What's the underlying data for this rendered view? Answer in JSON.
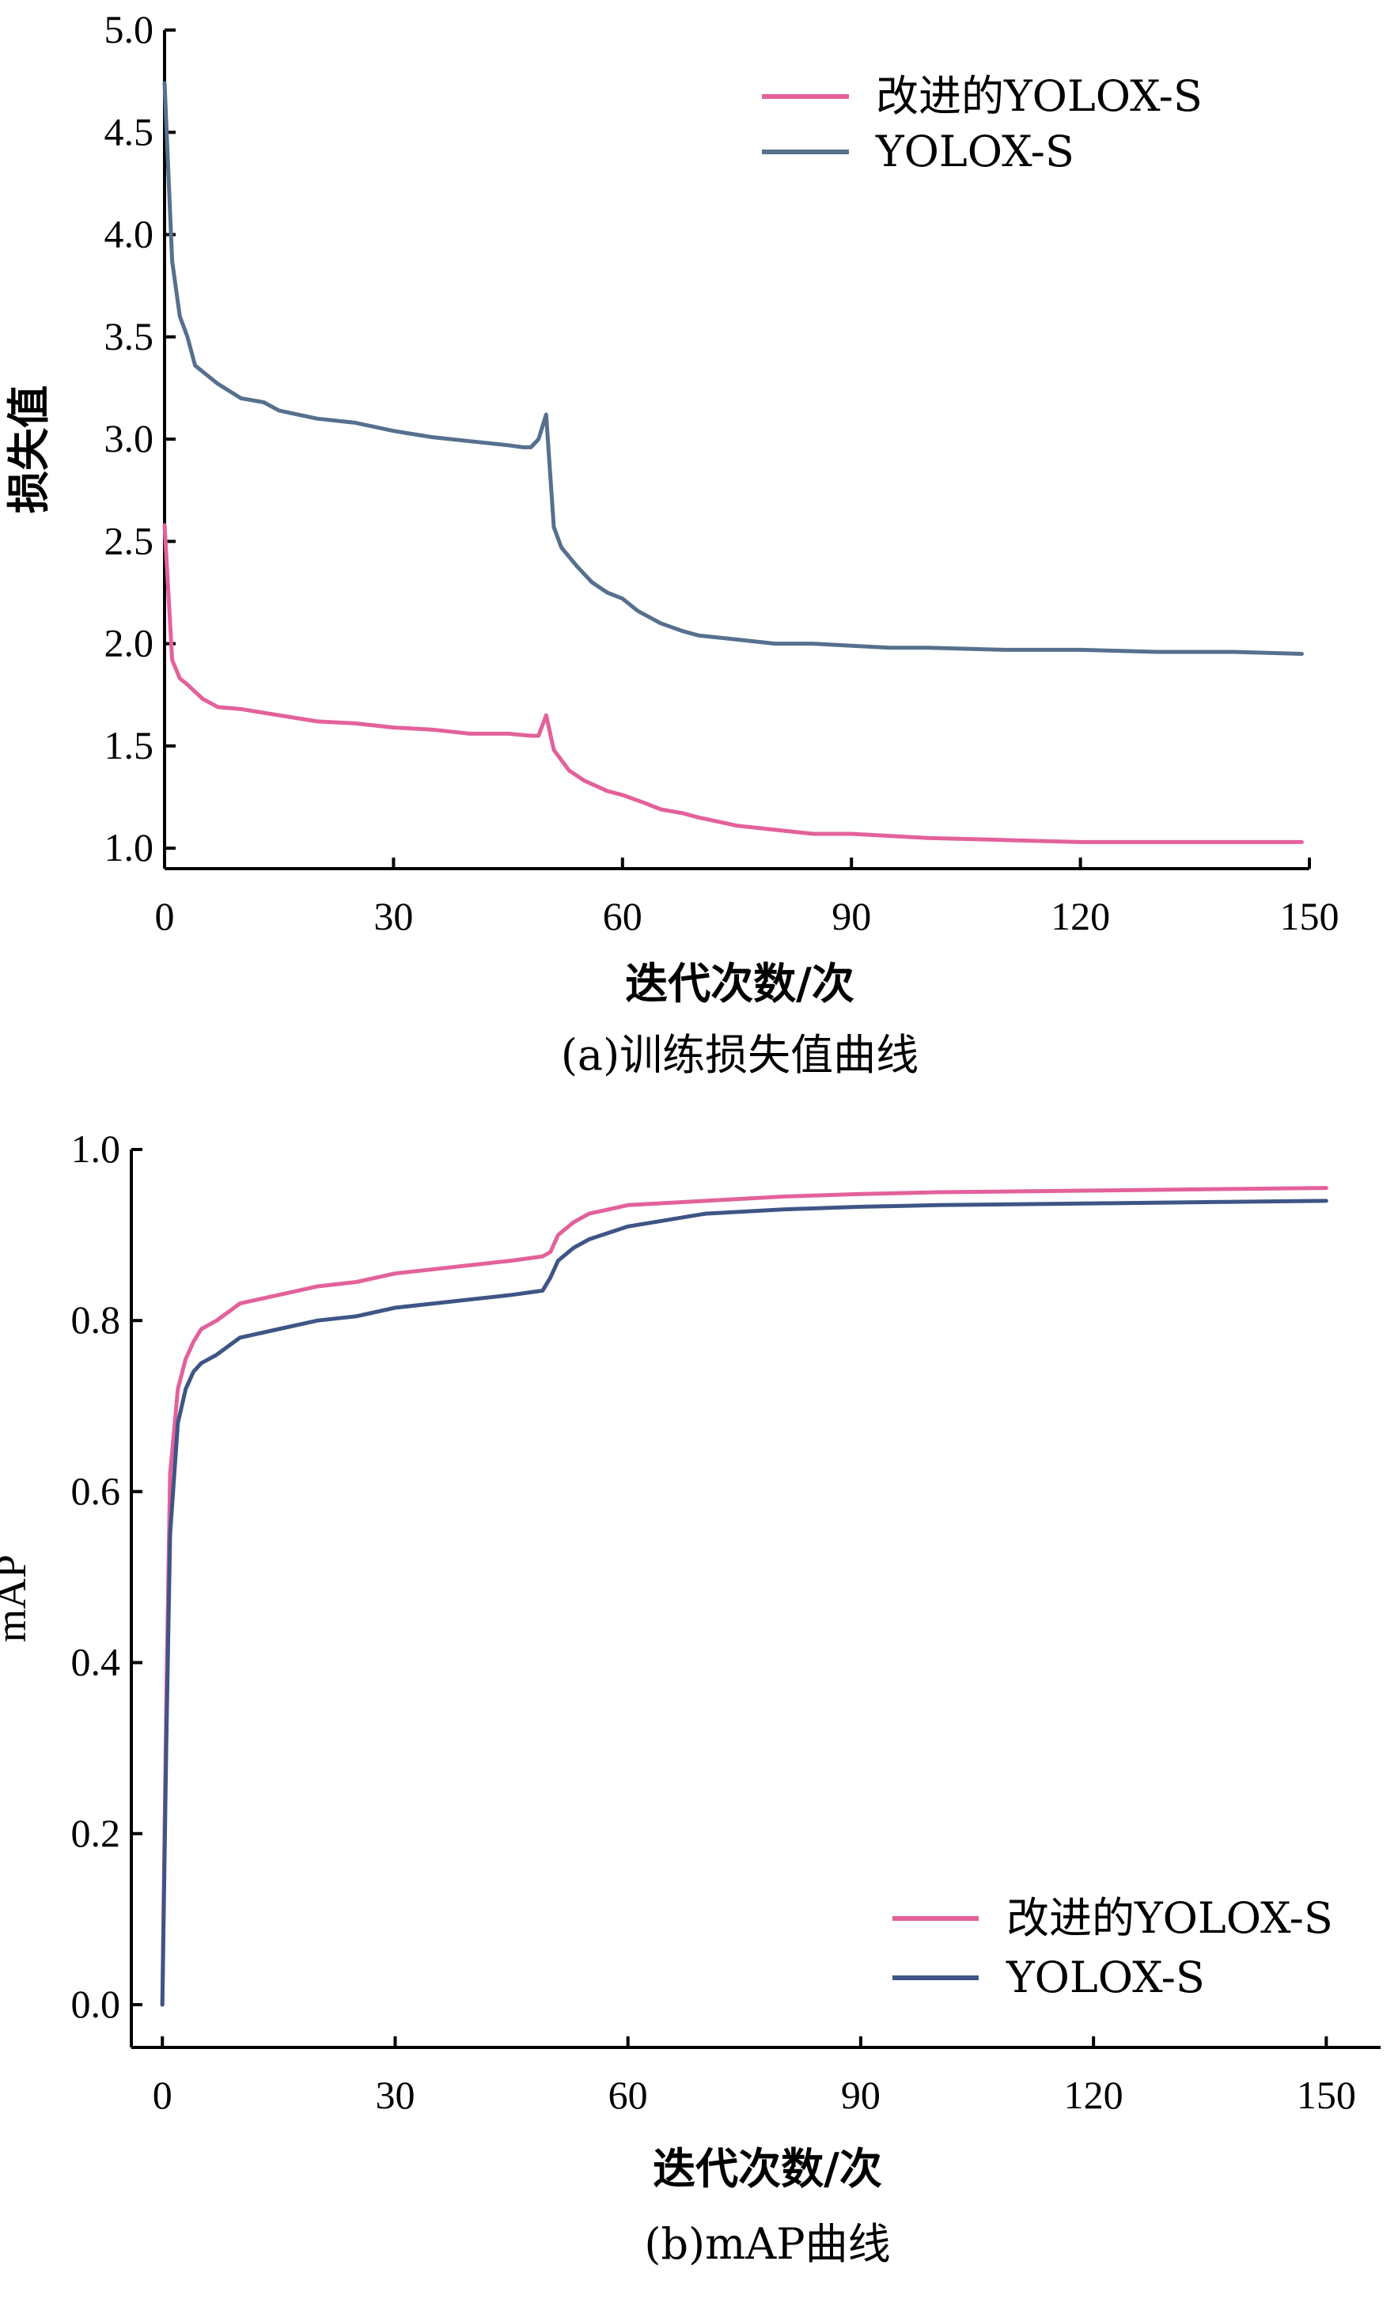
{
  "chart_data": [
    {
      "type": "line",
      "caption": "(a)训练损失值曲线",
      "xlabel": "迭代次数/次",
      "ylabel": "损失值",
      "xlim": [
        0,
        150
      ],
      "ylim": [
        0.9,
        5.0
      ],
      "xticks": [
        0,
        30,
        60,
        90,
        120,
        150
      ],
      "yticks": [
        1.0,
        1.5,
        2.0,
        2.5,
        3.0,
        3.5,
        4.0,
        4.5,
        5.0
      ],
      "xtick_labels": [
        "0",
        "30",
        "60",
        "90",
        "120",
        "150"
      ],
      "ytick_labels": [
        "1.0",
        "1.5",
        "2.0",
        "2.5",
        "3.0",
        "3.5",
        "4.0",
        "4.5",
        "5.0"
      ],
      "legend_position": "top-right",
      "grid": false,
      "series": [
        {
          "name": "改进的YOLOX-S",
          "color": "#e3619b",
          "x": [
            0,
            1,
            2,
            3,
            5,
            7,
            10,
            15,
            20,
            25,
            30,
            35,
            40,
            45,
            48,
            49,
            50,
            51,
            53,
            55,
            58,
            60,
            63,
            65,
            68,
            70,
            75,
            80,
            85,
            90,
            95,
            100,
            110,
            120,
            130,
            140,
            149
          ],
          "y": [
            2.58,
            1.92,
            1.83,
            1.8,
            1.73,
            1.69,
            1.68,
            1.65,
            1.62,
            1.61,
            1.59,
            1.58,
            1.56,
            1.56,
            1.55,
            1.55,
            1.65,
            1.48,
            1.38,
            1.33,
            1.28,
            1.26,
            1.22,
            1.19,
            1.17,
            1.15,
            1.11,
            1.09,
            1.07,
            1.07,
            1.06,
            1.05,
            1.04,
            1.03,
            1.03,
            1.03,
            1.03
          ]
        },
        {
          "name": "YOLOX-S",
          "color": "#56708e",
          "x": [
            0,
            1,
            2,
            3,
            4,
            5,
            7,
            10,
            13,
            15,
            20,
            25,
            30,
            35,
            40,
            45,
            47,
            48,
            49,
            50,
            51,
            52,
            54,
            56,
            58,
            60,
            62,
            65,
            68,
            70,
            75,
            80,
            85,
            90,
            95,
            100,
            110,
            120,
            130,
            140,
            149
          ],
          "y": [
            4.74,
            3.87,
            3.6,
            3.5,
            3.36,
            3.33,
            3.27,
            3.2,
            3.18,
            3.14,
            3.1,
            3.08,
            3.04,
            3.01,
            2.99,
            2.97,
            2.96,
            2.96,
            3.0,
            3.12,
            2.57,
            2.47,
            2.38,
            2.3,
            2.25,
            2.22,
            2.16,
            2.1,
            2.06,
            2.04,
            2.02,
            2.0,
            2.0,
            1.99,
            1.98,
            1.98,
            1.97,
            1.97,
            1.96,
            1.96,
            1.95
          ]
        }
      ]
    },
    {
      "type": "line",
      "caption": "(b)mAP曲线",
      "xlabel": "迭代次数/次",
      "ylabel": "mAP",
      "xlim": [
        -4,
        157
      ],
      "ylim": [
        -0.05,
        1.0
      ],
      "xticks": [
        0,
        30,
        60,
        90,
        120,
        150
      ],
      "yticks": [
        0.0,
        0.2,
        0.4,
        0.6,
        0.8,
        1.0
      ],
      "xtick_labels": [
        "0",
        "30",
        "60",
        "90",
        "120",
        "150"
      ],
      "ytick_labels": [
        "0.0",
        "0.2",
        "0.4",
        "0.6",
        "0.8",
        "1.0"
      ],
      "legend_position": "bottom-right",
      "grid": false,
      "series": [
        {
          "name": "改进的YOLOX-S",
          "color": "#e3619b",
          "x": [
            0,
            0.5,
            1,
            2,
            3,
            4,
            5,
            7,
            10,
            15,
            20,
            25,
            30,
            35,
            40,
            45,
            49,
            50,
            51,
            53,
            55,
            60,
            70,
            80,
            90,
            100,
            120,
            150
          ],
          "y": [
            0.0,
            0.35,
            0.62,
            0.72,
            0.755,
            0.775,
            0.79,
            0.8,
            0.82,
            0.83,
            0.84,
            0.845,
            0.855,
            0.86,
            0.865,
            0.87,
            0.875,
            0.88,
            0.9,
            0.915,
            0.925,
            0.935,
            0.94,
            0.945,
            0.948,
            0.95,
            0.952,
            0.955
          ]
        },
        {
          "name": "YOLOX-S",
          "color": "#3e5585",
          "x": [
            0,
            0.5,
            1,
            2,
            3,
            4,
            5,
            7,
            10,
            15,
            20,
            25,
            30,
            35,
            40,
            45,
            49,
            50,
            51,
            53,
            55,
            60,
            70,
            80,
            90,
            100,
            120,
            150
          ],
          "y": [
            0.0,
            0.3,
            0.55,
            0.68,
            0.72,
            0.74,
            0.75,
            0.76,
            0.78,
            0.79,
            0.8,
            0.805,
            0.815,
            0.82,
            0.825,
            0.83,
            0.835,
            0.85,
            0.87,
            0.885,
            0.895,
            0.91,
            0.925,
            0.93,
            0.933,
            0.935,
            0.937,
            0.94
          ]
        }
      ]
    }
  ]
}
